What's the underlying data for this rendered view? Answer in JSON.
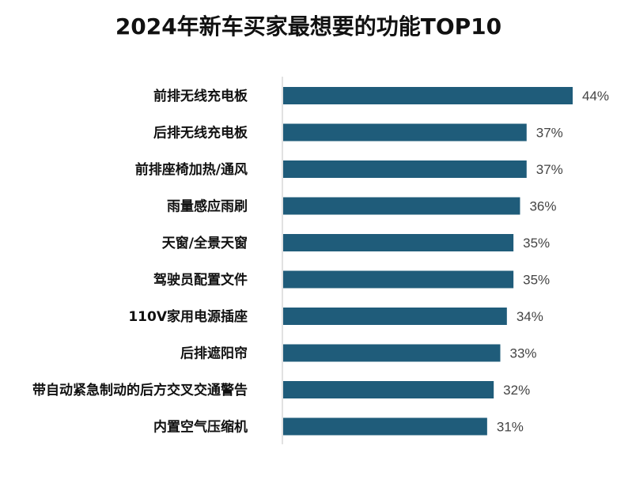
{
  "chart_data": {
    "type": "bar",
    "orientation": "horizontal",
    "title": "2024年新车买家最想要的功能TOP10",
    "categories": [
      "前排无线充电板",
      "后排无线充电板",
      "前排座椅加热/通风",
      "雨量感应雨刷",
      "天窗/全景天窗",
      "驾驶员配置文件",
      "110V家用电源插座",
      "后排遮阳帘",
      "带自动紧急制动的后方交叉交通警告",
      "内置空气压缩机"
    ],
    "values": [
      44,
      37,
      37,
      36,
      35,
      35,
      34,
      33,
      32,
      31
    ],
    "value_labels": [
      "44%",
      "37%",
      "37%",
      "36%",
      "35%",
      "35%",
      "34%",
      "33%",
      "32%",
      "31%"
    ],
    "xlabel": "",
    "ylabel": "",
    "xlim": [
      0,
      44
    ],
    "grid": false,
    "legend": "none",
    "bar_color": "#1f5c7a",
    "axis_color": "#d9d9d9"
  }
}
